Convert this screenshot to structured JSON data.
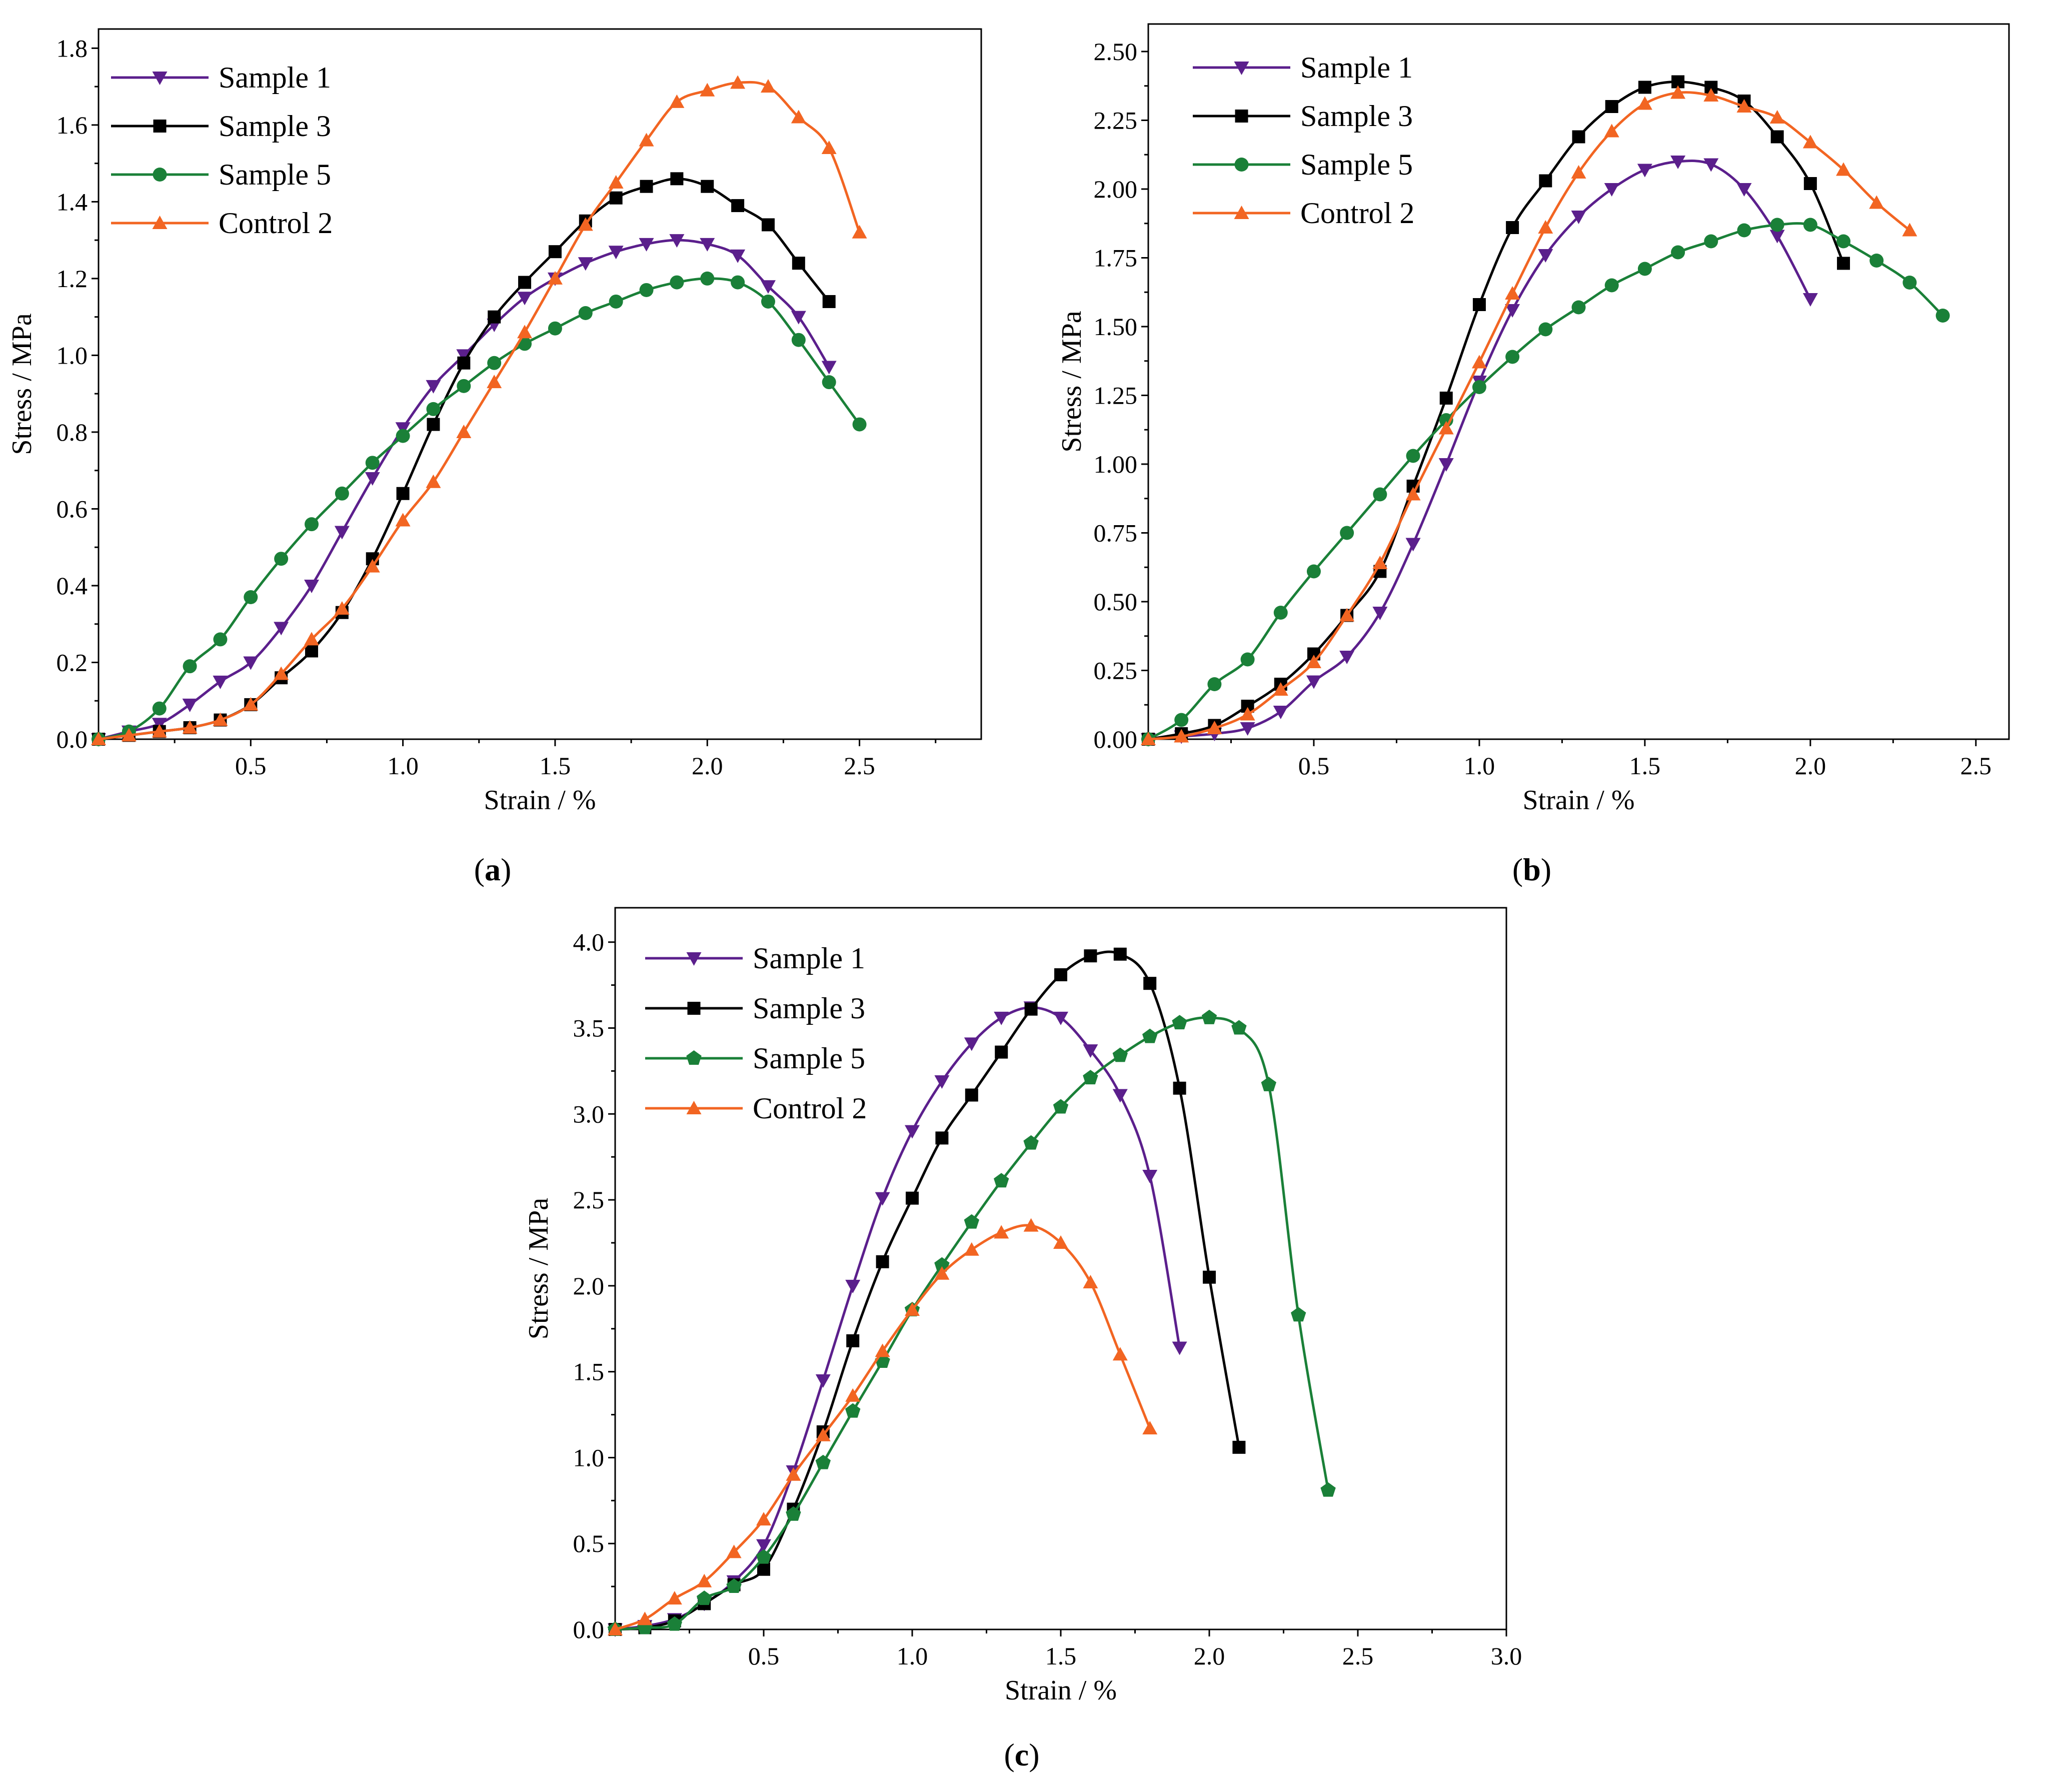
{
  "figure": {
    "series_colors": {
      "Sample 1": "#5b1f8c",
      "Sample 3": "#000000",
      "Sample 5": "#1a8038",
      "Control 2": "#f26522"
    }
  },
  "chart_data": [
    {
      "panel": "a",
      "type": "line",
      "xlabel": "Strain / %",
      "ylabel": "Stress / MPa",
      "xlim": [
        0,
        2.9
      ],
      "ylim": [
        0,
        1.85
      ],
      "xticks": [
        0.5,
        1.0,
        1.5,
        2.0,
        2.5
      ],
      "xtick_labels": [
        "0.5",
        "1.0",
        "1.5",
        "2.0",
        "2.5"
      ],
      "yticks": [
        0.0,
        0.2,
        0.4,
        0.6,
        0.8,
        1.0,
        1.2,
        1.4,
        1.6,
        1.8
      ],
      "ytick_labels": [
        "0.0",
        "0.2",
        "0.4",
        "0.6",
        "0.8",
        "1.0",
        "1.2",
        "1.4",
        "1.6",
        "1.8"
      ],
      "legend_position": "top-left",
      "series": [
        {
          "name": "Sample 1",
          "marker": "triangle-down",
          "x": [
            0,
            0.1,
            0.2,
            0.3,
            0.4,
            0.5,
            0.6,
            0.7,
            0.8,
            0.9,
            1.0,
            1.1,
            1.2,
            1.3,
            1.4,
            1.5,
            1.6,
            1.7,
            1.8,
            1.9,
            2.0,
            2.1,
            2.2,
            2.3,
            2.4
          ],
          "y": [
            0,
            0.02,
            0.04,
            0.09,
            0.15,
            0.2,
            0.29,
            0.4,
            0.54,
            0.68,
            0.81,
            0.92,
            1.0,
            1.08,
            1.15,
            1.2,
            1.24,
            1.27,
            1.29,
            1.3,
            1.29,
            1.26,
            1.18,
            1.1,
            0.97
          ]
        },
        {
          "name": "Sample 3",
          "marker": "square",
          "x": [
            0,
            0.1,
            0.2,
            0.3,
            0.4,
            0.5,
            0.6,
            0.7,
            0.8,
            0.9,
            1.0,
            1.1,
            1.2,
            1.3,
            1.4,
            1.5,
            1.6,
            1.7,
            1.8,
            1.9,
            2.0,
            2.1,
            2.2,
            2.3,
            2.4
          ],
          "y": [
            0,
            0.01,
            0.02,
            0.03,
            0.05,
            0.09,
            0.16,
            0.23,
            0.33,
            0.47,
            0.64,
            0.82,
            0.98,
            1.1,
            1.19,
            1.27,
            1.35,
            1.41,
            1.44,
            1.46,
            1.44,
            1.39,
            1.34,
            1.24,
            1.14
          ]
        },
        {
          "name": "Sample 5",
          "marker": "circle",
          "x": [
            0,
            0.1,
            0.2,
            0.3,
            0.4,
            0.5,
            0.6,
            0.7,
            0.8,
            0.9,
            1.0,
            1.1,
            1.2,
            1.3,
            1.4,
            1.5,
            1.6,
            1.7,
            1.8,
            1.9,
            2.0,
            2.1,
            2.2,
            2.3,
            2.4,
            2.5
          ],
          "y": [
            0,
            0.02,
            0.08,
            0.19,
            0.26,
            0.37,
            0.47,
            0.56,
            0.64,
            0.72,
            0.79,
            0.86,
            0.92,
            0.98,
            1.03,
            1.07,
            1.11,
            1.14,
            1.17,
            1.19,
            1.2,
            1.19,
            1.14,
            1.04,
            0.93,
            0.82
          ]
        },
        {
          "name": "Control 2",
          "marker": "triangle-up",
          "x": [
            0,
            0.1,
            0.2,
            0.3,
            0.4,
            0.5,
            0.6,
            0.7,
            0.8,
            0.9,
            1.0,
            1.1,
            1.2,
            1.3,
            1.4,
            1.5,
            1.6,
            1.7,
            1.8,
            1.9,
            2.0,
            2.1,
            2.2,
            2.3,
            2.4,
            2.5
          ],
          "y": [
            0,
            0.01,
            0.02,
            0.03,
            0.05,
            0.09,
            0.17,
            0.26,
            0.34,
            0.45,
            0.57,
            0.67,
            0.8,
            0.93,
            1.06,
            1.2,
            1.34,
            1.45,
            1.56,
            1.66,
            1.69,
            1.71,
            1.7,
            1.62,
            1.54,
            1.32
          ]
        }
      ]
    },
    {
      "panel": "b",
      "type": "line",
      "xlabel": "Strain / %",
      "ylabel": "Stress / MPa",
      "xlim": [
        0,
        2.6
      ],
      "ylim": [
        0,
        2.6
      ],
      "xticks": [
        0.5,
        1.0,
        1.5,
        2.0,
        2.5
      ],
      "xtick_labels": [
        "0.5",
        "1.0",
        "1.5",
        "2.0",
        "2.5"
      ],
      "yticks": [
        0.0,
        0.25,
        0.5,
        0.75,
        1.0,
        1.25,
        1.5,
        1.75,
        2.0,
        2.25,
        2.5
      ],
      "ytick_labels": [
        "0.00",
        "0.25",
        "0.50",
        "0.75",
        "1.00",
        "1.25",
        "1.50",
        "1.75",
        "2.00",
        "2.25",
        "2.50"
      ],
      "legend_position": "top-left",
      "series": [
        {
          "name": "Sample 1",
          "marker": "triangle-down",
          "x": [
            0,
            0.1,
            0.2,
            0.3,
            0.4,
            0.5,
            0.6,
            0.7,
            0.8,
            0.9,
            1.0,
            1.1,
            1.2,
            1.3,
            1.4,
            1.5,
            1.6,
            1.7,
            1.8,
            1.9,
            2.0
          ],
          "y": [
            0,
            0.01,
            0.02,
            0.04,
            0.1,
            0.21,
            0.3,
            0.46,
            0.71,
            1.0,
            1.3,
            1.56,
            1.76,
            1.9,
            2.0,
            2.07,
            2.1,
            2.09,
            2.0,
            1.83,
            1.6
          ]
        },
        {
          "name": "Sample 3",
          "marker": "square",
          "x": [
            0,
            0.1,
            0.2,
            0.3,
            0.4,
            0.5,
            0.6,
            0.7,
            0.8,
            0.9,
            1.0,
            1.1,
            1.2,
            1.3,
            1.4,
            1.5,
            1.6,
            1.7,
            1.8,
            1.9,
            2.0,
            2.1
          ],
          "y": [
            0,
            0.02,
            0.05,
            0.12,
            0.2,
            0.31,
            0.45,
            0.61,
            0.92,
            1.24,
            1.58,
            1.86,
            2.03,
            2.19,
            2.3,
            2.37,
            2.39,
            2.37,
            2.32,
            2.19,
            2.02,
            1.73
          ]
        },
        {
          "name": "Sample 5",
          "marker": "circle",
          "x": [
            0,
            0.1,
            0.2,
            0.3,
            0.4,
            0.5,
            0.6,
            0.7,
            0.8,
            0.9,
            1.0,
            1.1,
            1.2,
            1.3,
            1.4,
            1.5,
            1.6,
            1.7,
            1.8,
            1.9,
            2.0,
            2.1,
            2.2,
            2.3,
            2.4
          ],
          "y": [
            0,
            0.07,
            0.2,
            0.29,
            0.46,
            0.61,
            0.75,
            0.89,
            1.03,
            1.16,
            1.28,
            1.39,
            1.49,
            1.57,
            1.65,
            1.71,
            1.77,
            1.81,
            1.85,
            1.87,
            1.87,
            1.81,
            1.74,
            1.66,
            1.54
          ]
        },
        {
          "name": "Control 2",
          "marker": "triangle-up",
          "x": [
            0,
            0.1,
            0.2,
            0.3,
            0.4,
            0.5,
            0.6,
            0.7,
            0.8,
            0.9,
            1.0,
            1.1,
            1.2,
            1.3,
            1.4,
            1.5,
            1.6,
            1.7,
            1.8,
            1.9,
            2.0,
            2.1,
            2.2,
            2.3
          ],
          "y": [
            0,
            0.01,
            0.04,
            0.09,
            0.18,
            0.28,
            0.45,
            0.64,
            0.89,
            1.13,
            1.37,
            1.62,
            1.86,
            2.06,
            2.21,
            2.31,
            2.35,
            2.34,
            2.3,
            2.26,
            2.17,
            2.07,
            1.95,
            1.85
          ]
        }
      ]
    },
    {
      "panel": "c",
      "type": "line",
      "xlabel": "Strain / %",
      "ylabel": "Stress / MPa",
      "xlim": [
        0,
        3.0
      ],
      "ylim": [
        0,
        4.2
      ],
      "xticks": [
        0.5,
        1.0,
        1.5,
        2.0,
        2.5,
        3.0
      ],
      "xtick_labels": [
        "0.5",
        "1.0",
        "1.5",
        "2.0",
        "2.5",
        "3.0"
      ],
      "yticks": [
        0.0,
        0.5,
        1.0,
        1.5,
        2.0,
        2.5,
        3.0,
        3.5,
        4.0
      ],
      "ytick_labels": [
        "0.0",
        "0.5",
        "1.0",
        "1.5",
        "2.0",
        "2.5",
        "3.0",
        "3.5",
        "4.0"
      ],
      "legend_position": "top-left",
      "series": [
        {
          "name": "Sample 1",
          "marker": "triangle-down",
          "x": [
            0,
            0.1,
            0.2,
            0.3,
            0.4,
            0.5,
            0.6,
            0.7,
            0.8,
            0.9,
            1.0,
            1.1,
            1.2,
            1.3,
            1.4,
            1.5,
            1.6,
            1.7,
            1.8,
            1.9
          ],
          "y": [
            0,
            0.02,
            0.06,
            0.15,
            0.28,
            0.49,
            0.92,
            1.45,
            2.0,
            2.51,
            2.9,
            3.19,
            3.41,
            3.56,
            3.62,
            3.56,
            3.37,
            3.11,
            2.64,
            1.64
          ]
        },
        {
          "name": "Sample 3",
          "marker": "square",
          "x": [
            0,
            0.1,
            0.2,
            0.3,
            0.4,
            0.5,
            0.6,
            0.7,
            0.8,
            0.9,
            1.0,
            1.1,
            1.2,
            1.3,
            1.4,
            1.5,
            1.6,
            1.7,
            1.8,
            1.9,
            2.0,
            2.1
          ],
          "y": [
            0,
            0.01,
            0.05,
            0.15,
            0.26,
            0.35,
            0.7,
            1.15,
            1.68,
            2.14,
            2.51,
            2.86,
            3.11,
            3.36,
            3.61,
            3.81,
            3.92,
            3.93,
            3.76,
            3.15,
            2.05,
            1.06
          ]
        },
        {
          "name": "Sample 5",
          "marker": "pentagon",
          "x": [
            0,
            0.1,
            0.2,
            0.3,
            0.4,
            0.5,
            0.6,
            0.7,
            0.8,
            0.9,
            1.0,
            1.1,
            1.2,
            1.3,
            1.4,
            1.5,
            1.6,
            1.7,
            1.8,
            1.9,
            2.0,
            2.1,
            2.2,
            2.3,
            2.4
          ],
          "y": [
            0,
            0.01,
            0.03,
            0.18,
            0.25,
            0.42,
            0.67,
            0.97,
            1.27,
            1.56,
            1.86,
            2.12,
            2.37,
            2.61,
            2.83,
            3.04,
            3.21,
            3.34,
            3.45,
            3.53,
            3.56,
            3.5,
            3.17,
            1.83,
            0.81
          ]
        },
        {
          "name": "Control 2",
          "marker": "triangle-up",
          "x": [
            0,
            0.1,
            0.2,
            0.3,
            0.4,
            0.5,
            0.6,
            0.7,
            0.8,
            0.9,
            1.0,
            1.1,
            1.2,
            1.3,
            1.4,
            1.5,
            1.6,
            1.7,
            1.8
          ],
          "y": [
            0,
            0.06,
            0.18,
            0.28,
            0.45,
            0.64,
            0.9,
            1.13,
            1.36,
            1.62,
            1.86,
            2.07,
            2.21,
            2.31,
            2.35,
            2.25,
            2.02,
            1.6,
            1.17
          ]
        }
      ]
    }
  ]
}
